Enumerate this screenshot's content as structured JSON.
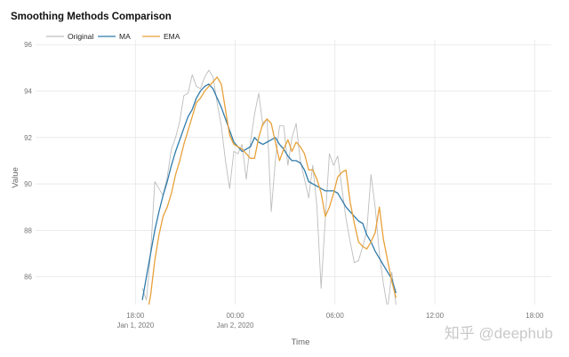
{
  "chart_data": {
    "type": "line",
    "title": "Smoothing Methods Comparison",
    "xlabel": "Time",
    "ylabel": "Value",
    "legend_position": "top-left",
    "grid": true,
    "ylim": [
      84.8,
      96.2
    ],
    "xlim": [
      "2020-01-01T12:00",
      "2020-01-02T19:00"
    ],
    "yticks": [
      86,
      88,
      90,
      92,
      94,
      96
    ],
    "xticks": [
      {
        "t": "2020-01-01T18:00",
        "label": "18:00",
        "sub": "Jan 1, 2020"
      },
      {
        "t": "2020-01-02T00:00",
        "label": "00:00",
        "sub": "Jan 2, 2020"
      },
      {
        "t": "2020-01-02T06:00",
        "label": "06:00",
        "sub": ""
      },
      {
        "t": "2020-01-02T12:00",
        "label": "12:00",
        "sub": ""
      },
      {
        "t": "2020-01-02T18:00",
        "label": "18:00",
        "sub": ""
      }
    ],
    "x": [
      "2020-01-01T18:25",
      "2020-01-01T18:40",
      "2020-01-01T18:55",
      "2020-01-01T19:10",
      "2020-01-01T19:25",
      "2020-01-01T19:40",
      "2020-01-01T19:55",
      "2020-01-01T20:10",
      "2020-01-01T20:25",
      "2020-01-01T20:40",
      "2020-01-01T20:55",
      "2020-01-01T21:10",
      "2020-01-01T21:25",
      "2020-01-01T21:40",
      "2020-01-01T21:55",
      "2020-01-01T22:10",
      "2020-01-01T22:25",
      "2020-01-01T22:40",
      "2020-01-01T22:55",
      "2020-01-01T23:10",
      "2020-01-01T23:25",
      "2020-01-01T23:40",
      "2020-01-01T23:55",
      "2020-01-02T00:10",
      "2020-01-02T00:25",
      "2020-01-02T00:40",
      "2020-01-02T00:55",
      "2020-01-02T01:10",
      "2020-01-02T01:25",
      "2020-01-02T01:40",
      "2020-01-02T01:55",
      "2020-01-02T02:10",
      "2020-01-02T02:25",
      "2020-01-02T02:40",
      "2020-01-02T02:55",
      "2020-01-02T03:10",
      "2020-01-02T03:25",
      "2020-01-02T03:40",
      "2020-01-02T03:55",
      "2020-01-02T04:10",
      "2020-01-02T04:25",
      "2020-01-02T04:40",
      "2020-01-02T04:55",
      "2020-01-02T05:10",
      "2020-01-02T05:25",
      "2020-01-02T05:40",
      "2020-01-02T05:55",
      "2020-01-02T06:10",
      "2020-01-02T06:25",
      "2020-01-02T06:40",
      "2020-01-02T06:55",
      "2020-01-02T07:10",
      "2020-01-02T07:25",
      "2020-01-02T07:40",
      "2020-01-02T07:55",
      "2020-01-02T08:10",
      "2020-01-02T08:25",
      "2020-01-02T08:40",
      "2020-01-02T08:55",
      "2020-01-02T09:10",
      "2020-01-02T09:25",
      "2020-01-02T09:40"
    ],
    "series": [
      {
        "name": "Original",
        "color": "#bdbdbd",
        "values": [
          85.5,
          85,
          87,
          90.1,
          89.8,
          89.5,
          90.3,
          91.5,
          92,
          92.7,
          93.8,
          93.9,
          94.7,
          94.2,
          94.1,
          94.6,
          94.9,
          94.6,
          93.5,
          92.5,
          91,
          89.8,
          91.4,
          91.3,
          91.7,
          90.2,
          91.8,
          93,
          93.9,
          92.5,
          92.8,
          88.8,
          91,
          92.5,
          92.5,
          90.8,
          92,
          92.6,
          91,
          90.2,
          89.4,
          90.8,
          89,
          85.5,
          88.5,
          91.3,
          90.8,
          91.2,
          89.8,
          88.5,
          87.5,
          86.6,
          86.7,
          87.3,
          88,
          90.4,
          89,
          87,
          85.7,
          84.6,
          86.2,
          84.8
        ]
      },
      {
        "name": "MA",
        "color": "#2f7bab",
        "values": [
          85.0,
          86.0,
          87.0,
          88.0,
          88.8,
          89.5,
          90.1,
          90.8,
          91.4,
          91.9,
          92.4,
          92.9,
          93.2,
          93.7,
          94.0,
          94.2,
          94.3,
          94.1,
          93.7,
          93.3,
          92.8,
          92.3,
          91.8,
          91.6,
          91.4,
          91.5,
          91.6,
          92.0,
          91.8,
          91.7,
          91.8,
          91.9,
          92.0,
          91.7,
          91.5,
          91.2,
          91.0,
          91.0,
          90.9,
          90.6,
          90.1,
          90.0,
          89.9,
          89.8,
          89.7,
          89.7,
          89.7,
          89.6,
          89.3,
          89.0,
          88.8,
          88.6,
          88.4,
          88.3,
          87.8,
          87.5,
          87.1,
          86.8,
          86.5,
          86.2,
          85.9,
          85.3
        ]
      },
      {
        "name": "EMA",
        "color": "#e8a13a",
        "values": [
          83.5,
          84.2,
          85.2,
          86.7,
          87.8,
          88.6,
          89.0,
          89.6,
          90.4,
          91.0,
          91.7,
          92.3,
          92.9,
          93.5,
          93.7,
          94.0,
          94.2,
          94.4,
          94.6,
          94.3,
          93.2,
          92.1,
          91.7,
          91.6,
          91.5,
          91.3,
          91.1,
          91.1,
          92.0,
          92.6,
          92.8,
          92.6,
          91.8,
          91.0,
          91.5,
          91.9,
          91.4,
          91.8,
          91.6,
          91.3,
          90.6,
          90.6,
          90.2,
          89.6,
          88.6,
          89.0,
          89.6,
          90.3,
          90.5,
          90.6,
          89.2,
          88.3,
          87.5,
          87.3,
          87.2,
          87.5,
          87.9,
          89.0,
          87.6,
          86.7,
          85.8,
          85.1
        ]
      }
    ]
  },
  "watermark": "知乎 @deephub"
}
